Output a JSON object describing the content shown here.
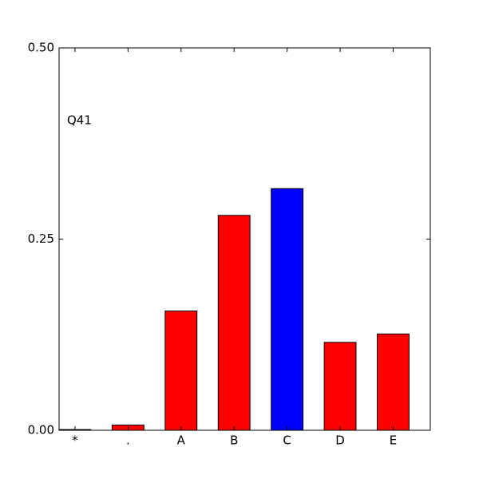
{
  "chart_data": {
    "type": "bar",
    "annotation": "Q41",
    "categories": [
      "*",
      ".",
      "A",
      "B",
      "C",
      "D",
      "E"
    ],
    "values": [
      0.001,
      0.007,
      0.156,
      0.281,
      0.316,
      0.115,
      0.126
    ],
    "colors": [
      "#ff0000",
      "#ff0000",
      "#ff0000",
      "#ff0000",
      "#0000ff",
      "#ff0000",
      "#ff0000"
    ],
    "ylim": [
      0,
      0.5
    ],
    "yticks": [
      {
        "value": 0,
        "label": "0.00"
      },
      {
        "value": 0.25,
        "label": "0.25"
      },
      {
        "value": 0.5,
        "label": "0.50"
      }
    ],
    "grid": false
  }
}
